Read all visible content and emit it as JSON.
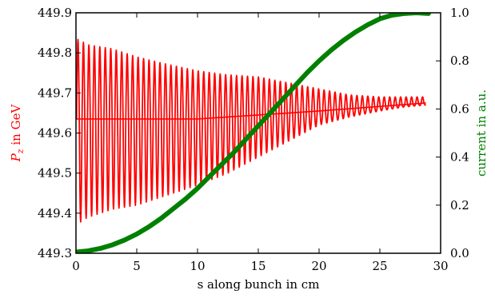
{
  "chart_data": {
    "type": "line",
    "xlabel": "s along bunch in cm",
    "ylabel_left": "P",
    "ylabel_left_subscript": "z",
    "ylabel_left_suffix": " in GeV",
    "ylabel_right": "current in a.u.",
    "xlim": [
      0,
      30
    ],
    "ylim_left": [
      449.3,
      449.9
    ],
    "ylim_right": [
      0.0,
      1.0
    ],
    "x_ticks": [
      0,
      5,
      10,
      15,
      20,
      25,
      30
    ],
    "x_tick_labels": [
      "0",
      "5",
      "10",
      "15",
      "20",
      "25",
      "30"
    ],
    "y_left_ticks": [
      449.3,
      449.4,
      449.5,
      449.6,
      449.7,
      449.8,
      449.9
    ],
    "y_left_tick_labels": [
      "449.3",
      "449.4",
      "449.5",
      "449.6",
      "449.7",
      "449.8",
      "449.9"
    ],
    "y_right_ticks": [
      0.0,
      0.2,
      0.4,
      0.6,
      0.8,
      1.0
    ],
    "y_right_tick_labels": [
      "0.0",
      "0.2",
      "0.4",
      "0.6",
      "0.8",
      "1.0"
    ],
    "grid": false,
    "series": [
      {
        "axis": "left",
        "color": "#ff0000",
        "style": "oscillating",
        "x_range": [
          0.05,
          28.8
        ],
        "oscillation_period_cm": 0.45,
        "envelope_x": [
          0.05,
          0.4,
          1,
          2,
          3,
          5,
          7,
          10,
          12.5,
          15,
          17.5,
          20,
          22.5,
          25,
          27,
          28.8
        ],
        "envelope_upper": [
          449.835,
          449.83,
          449.82,
          449.815,
          449.81,
          449.79,
          449.775,
          449.755,
          449.745,
          449.74,
          449.725,
          449.71,
          449.695,
          449.69,
          449.69,
          449.69
        ],
        "envelope_lower": [
          449.33,
          449.38,
          449.39,
          449.4,
          449.41,
          449.42,
          449.44,
          449.47,
          449.5,
          449.54,
          449.58,
          449.62,
          449.64,
          449.655,
          449.665,
          449.67
        ],
        "center_x": [
          0,
          10,
          20,
          28.8
        ],
        "center_y": [
          449.635,
          449.635,
          449.655,
          449.675
        ]
      },
      {
        "axis": "right",
        "color": "#008000",
        "style": "thick-line",
        "x": [
          0,
          1,
          2,
          3,
          4,
          5,
          6,
          7,
          8,
          9,
          10,
          11,
          12,
          13,
          14,
          15,
          16,
          17,
          18,
          19,
          20,
          21,
          22,
          23,
          24,
          25,
          26,
          27,
          28,
          29
        ],
        "y": [
          0.005,
          0.01,
          0.02,
          0.035,
          0.055,
          0.08,
          0.11,
          0.145,
          0.185,
          0.225,
          0.27,
          0.32,
          0.37,
          0.42,
          0.475,
          0.53,
          0.585,
          0.64,
          0.695,
          0.75,
          0.8,
          0.845,
          0.885,
          0.92,
          0.95,
          0.975,
          0.99,
          0.997,
          1.0,
          0.997
        ]
      }
    ]
  }
}
